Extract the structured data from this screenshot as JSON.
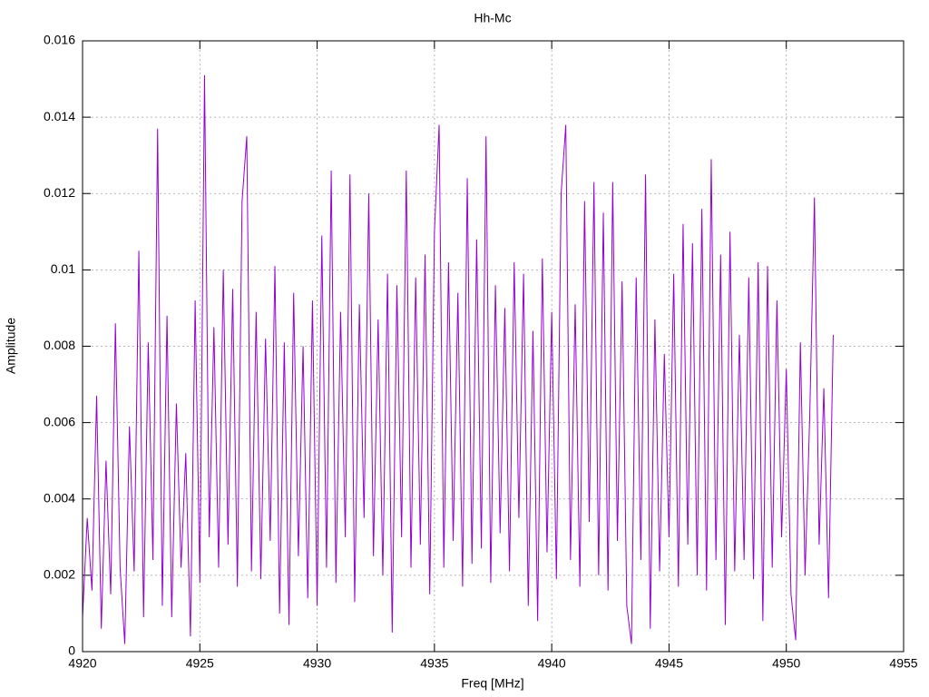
{
  "chart_data": {
    "type": "line",
    "title": "Hh-Mc",
    "x_label": "Freq [MHz]",
    "y_label": "Amplitude",
    "x": [
      4920.0,
      4920.2,
      4920.4,
      4920.6,
      4920.8,
      4921.0,
      4921.2,
      4921.4,
      4921.6,
      4921.8,
      4922.0,
      4922.2,
      4922.4,
      4922.6,
      4922.8,
      4923.0,
      4923.2,
      4923.4,
      4923.6,
      4923.8,
      4924.0,
      4924.2,
      4924.4,
      4924.6,
      4924.8,
      4925.0,
      4925.2,
      4925.4,
      4925.6,
      4925.8,
      4926.0,
      4926.2,
      4926.4,
      4926.6,
      4926.8,
      4927.0,
      4927.2,
      4927.4,
      4927.6,
      4927.8,
      4928.0,
      4928.2,
      4928.4,
      4928.6,
      4928.8,
      4929.0,
      4929.2,
      4929.4,
      4929.6,
      4929.8,
      4930.0,
      4930.2,
      4930.4,
      4930.6,
      4930.8,
      4931.0,
      4931.2,
      4931.4,
      4931.6,
      4931.8,
      4932.0,
      4932.2,
      4932.4,
      4932.6,
      4932.8,
      4933.0,
      4933.2,
      4933.4,
      4933.6,
      4933.8,
      4934.0,
      4934.2,
      4934.4,
      4934.6,
      4934.8,
      4935.0,
      4935.2,
      4935.4,
      4935.6,
      4935.8,
      4936.0,
      4936.2,
      4936.4,
      4936.6,
      4936.8,
      4937.0,
      4937.2,
      4937.4,
      4937.6,
      4937.8,
      4938.0,
      4938.2,
      4938.4,
      4938.6,
      4938.8,
      4939.0,
      4939.2,
      4939.4,
      4939.6,
      4939.8,
      4940.0,
      4940.2,
      4940.4,
      4940.6,
      4940.8,
      4941.0,
      4941.2,
      4941.4,
      4941.6,
      4941.8,
      4942.0,
      4942.2,
      4942.4,
      4942.6,
      4942.8,
      4943.0,
      4943.2,
      4943.4,
      4943.6,
      4943.8,
      4944.0,
      4944.2,
      4944.4,
      4944.6,
      4944.8,
      4945.0,
      4945.2,
      4945.4,
      4945.6,
      4945.8,
      4946.0,
      4946.2,
      4946.4,
      4946.6,
      4946.8,
      4947.0,
      4947.2,
      4947.4,
      4947.6,
      4947.8,
      4948.0,
      4948.2,
      4948.4,
      4948.6,
      4948.8,
      4949.0,
      4949.2,
      4949.4,
      4949.6,
      4949.8,
      4950.0,
      4950.2,
      4950.4,
      4950.6,
      4950.8,
      4951.0,
      4951.2,
      4951.4,
      4951.6,
      4951.8,
      4952.0
    ],
    "series": [
      {
        "color": "#9400d3",
        "values": [
          0.0009,
          0.0035,
          0.0016,
          0.0067,
          0.0006,
          0.005,
          0.0015,
          0.0086,
          0.0022,
          0.0002,
          0.0059,
          0.0021,
          0.0105,
          0.0009,
          0.0081,
          0.0024,
          0.0137,
          0.0012,
          0.0088,
          0.0009,
          0.0065,
          0.0022,
          0.0052,
          0.0004,
          0.0092,
          0.0018,
          0.0151,
          0.003,
          0.0085,
          0.0022,
          0.01,
          0.0028,
          0.0095,
          0.0017,
          0.0118,
          0.0135,
          0.0021,
          0.0089,
          0.0019,
          0.0082,
          0.0029,
          0.0101,
          0.001,
          0.0081,
          0.0007,
          0.0094,
          0.0025,
          0.008,
          0.0014,
          0.0092,
          0.0012,
          0.0109,
          0.0022,
          0.0126,
          0.0018,
          0.0089,
          0.003,
          0.0125,
          0.0013,
          0.0091,
          0.0035,
          0.012,
          0.0025,
          0.0087,
          0.002,
          0.0099,
          0.0005,
          0.0096,
          0.003,
          0.0126,
          0.0022,
          0.0098,
          0.0028,
          0.0104,
          0.0015,
          0.011,
          0.0138,
          0.0022,
          0.0102,
          0.0029,
          0.0094,
          0.0017,
          0.0124,
          0.0023,
          0.0108,
          0.0027,
          0.0135,
          0.0018,
          0.0096,
          0.0031,
          0.009,
          0.0021,
          0.0102,
          0.0035,
          0.0099,
          0.0012,
          0.0084,
          0.0008,
          0.0103,
          0.0026,
          0.0089,
          0.0019,
          0.012,
          0.0138,
          0.0024,
          0.0091,
          0.0017,
          0.0118,
          0.0034,
          0.0123,
          0.002,
          0.0115,
          0.0016,
          0.0123,
          0.0029,
          0.0097,
          0.0012,
          0.0002,
          0.0098,
          0.0024,
          0.0125,
          0.0006,
          0.0087,
          0.0021,
          0.0078,
          0.003,
          0.0099,
          0.0017,
          0.0112,
          0.0028,
          0.0107,
          0.002,
          0.0116,
          0.0016,
          0.0129,
          0.0024,
          0.0104,
          0.0007,
          0.011,
          0.0021,
          0.0083,
          0.0024,
          0.0098,
          0.0019,
          0.0102,
          0.0008,
          0.0101,
          0.0022,
          0.0092,
          0.003,
          0.0074,
          0.0015,
          0.0003,
          0.0081,
          0.002,
          0.0062,
          0.0119,
          0.0028,
          0.0069,
          0.0014,
          0.0083
        ]
      }
    ],
    "xlim": [
      4920,
      4955
    ],
    "xticks": [
      4920,
      4925,
      4930,
      4935,
      4940,
      4945,
      4950,
      4955
    ],
    "ylim": [
      0,
      0.016
    ],
    "yticks": [
      0,
      0.002,
      0.004,
      0.006,
      0.008,
      0.01,
      0.012,
      0.014,
      0.016
    ],
    "grid": true
  }
}
